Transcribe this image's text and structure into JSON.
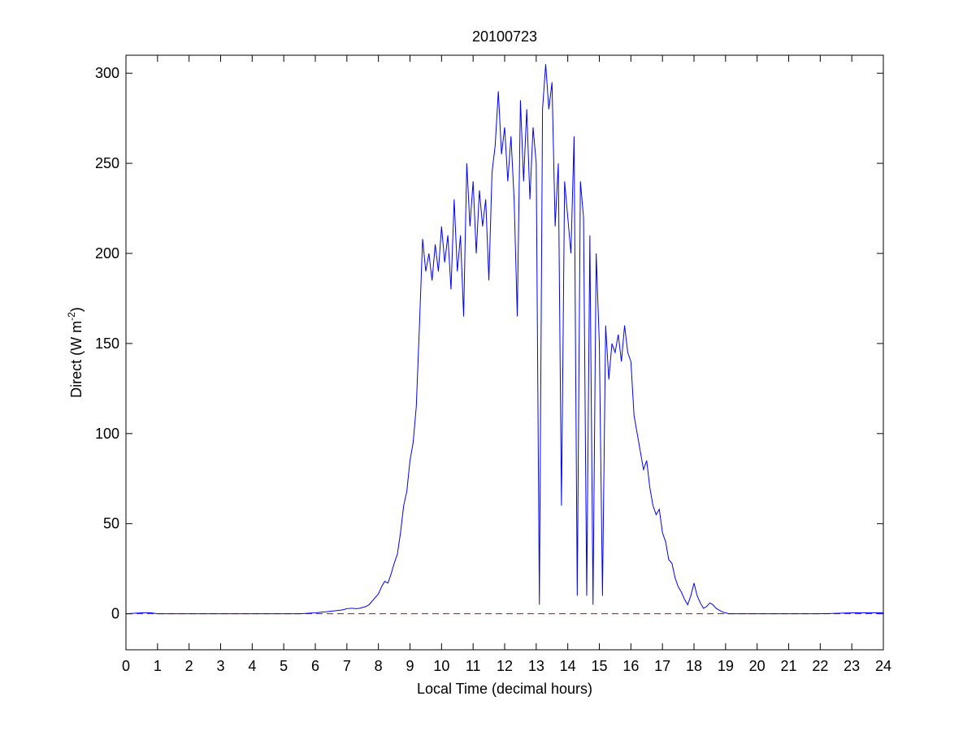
{
  "chart_data": {
    "type": "line",
    "title": "20100723",
    "xlabel": "Local Time (decimal hours)",
    "ylabel": [
      "Direct (W m",
      "-2",
      ")"
    ],
    "xlim": [
      0,
      24
    ],
    "xticks": [
      0,
      1,
      2,
      3,
      4,
      5,
      6,
      7,
      8,
      9,
      10,
      11,
      12,
      13,
      14,
      15,
      16,
      17,
      18,
      19,
      20,
      21,
      22,
      23,
      24
    ],
    "ylim": [
      -20,
      310
    ],
    "yticks": [
      0,
      50,
      100,
      150,
      200,
      250,
      300
    ],
    "reference_lines": [
      {
        "y": 0,
        "color": "#cc0000",
        "dashed": true
      }
    ],
    "series": [
      {
        "color": "#0000ff",
        "x": [
          0,
          0.5,
          0.8,
          1,
          1.5,
          2,
          2.5,
          3,
          3.5,
          4,
          4.5,
          5,
          5.5,
          6,
          6.1,
          6.2,
          6.3,
          6.4,
          6.5,
          6.6,
          6.7,
          6.8,
          6.9,
          7,
          7.1,
          7.2,
          7.3,
          7.4,
          7.5,
          7.6,
          7.7,
          7.8,
          7.9,
          8,
          8.1,
          8.2,
          8.3,
          8.4,
          8.5,
          8.6,
          8.7,
          8.8,
          8.9,
          9,
          9.1,
          9.2,
          9.3,
          9.4,
          9.5,
          9.6,
          9.7,
          9.8,
          9.9,
          10,
          10.1,
          10.2,
          10.3,
          10.4,
          10.5,
          10.6,
          10.7,
          10.8,
          10.9,
          11,
          11.1,
          11.2,
          11.3,
          11.4,
          11.5,
          11.6,
          11.7,
          11.8,
          11.9,
          12,
          12.1,
          12.2,
          12.3,
          12.4,
          12.5,
          12.6,
          12.7,
          12.8,
          12.9,
          13,
          13.1,
          13.2,
          13.3,
          13.4,
          13.5,
          13.6,
          13.7,
          13.8,
          13.9,
          14,
          14.1,
          14.2,
          14.3,
          14.4,
          14.5,
          14.6,
          14.7,
          14.8,
          14.9,
          15,
          15.1,
          15.2,
          15.3,
          15.4,
          15.5,
          15.6,
          15.7,
          15.8,
          15.9,
          16,
          16.1,
          16.2,
          16.3,
          16.4,
          16.5,
          16.6,
          16.7,
          16.8,
          16.9,
          17,
          17.1,
          17.2,
          17.3,
          17.4,
          17.5,
          17.6,
          17.7,
          17.8,
          17.9,
          18,
          18.1,
          18.2,
          18.3,
          18.4,
          18.5,
          18.6,
          18.7,
          18.8,
          18.9,
          19,
          19.1,
          19.5,
          20,
          21,
          22,
          23,
          23.5,
          24
        ],
        "values": [
          0,
          0.5,
          0.5,
          0,
          0,
          0,
          0,
          0,
          0,
          0,
          0,
          0,
          0,
          0.5,
          0.7,
          0.9,
          1,
          1.2,
          1.4,
          1.6,
          1.8,
          2,
          2.3,
          2.8,
          3,
          3,
          2.8,
          3,
          3.5,
          4,
          5,
          7,
          9,
          11,
          15,
          18,
          17,
          22,
          28,
          33,
          45,
          60,
          68,
          85,
          95,
          115,
          160,
          208,
          190,
          200,
          185,
          205,
          190,
          215,
          195,
          210,
          180,
          230,
          190,
          210,
          165,
          250,
          215,
          240,
          200,
          235,
          215,
          230,
          185,
          245,
          260,
          290,
          255,
          270,
          240,
          265,
          230,
          165,
          285,
          240,
          280,
          230,
          270,
          250,
          5,
          280,
          305,
          280,
          295,
          215,
          250,
          60,
          240,
          220,
          200,
          265,
          10,
          240,
          220,
          10,
          210,
          5,
          200,
          150,
          10,
          160,
          130,
          150,
          145,
          155,
          140,
          160,
          145,
          140,
          110,
          100,
          90,
          80,
          85,
          70,
          60,
          55,
          58,
          45,
          40,
          30,
          28,
          20,
          15,
          12,
          8,
          5,
          10,
          17,
          10,
          6,
          3,
          4,
          6,
          5,
          3,
          2,
          1,
          0.5,
          0,
          0,
          0,
          0,
          0,
          0.5,
          0.5,
          0.5
        ]
      }
    ]
  }
}
